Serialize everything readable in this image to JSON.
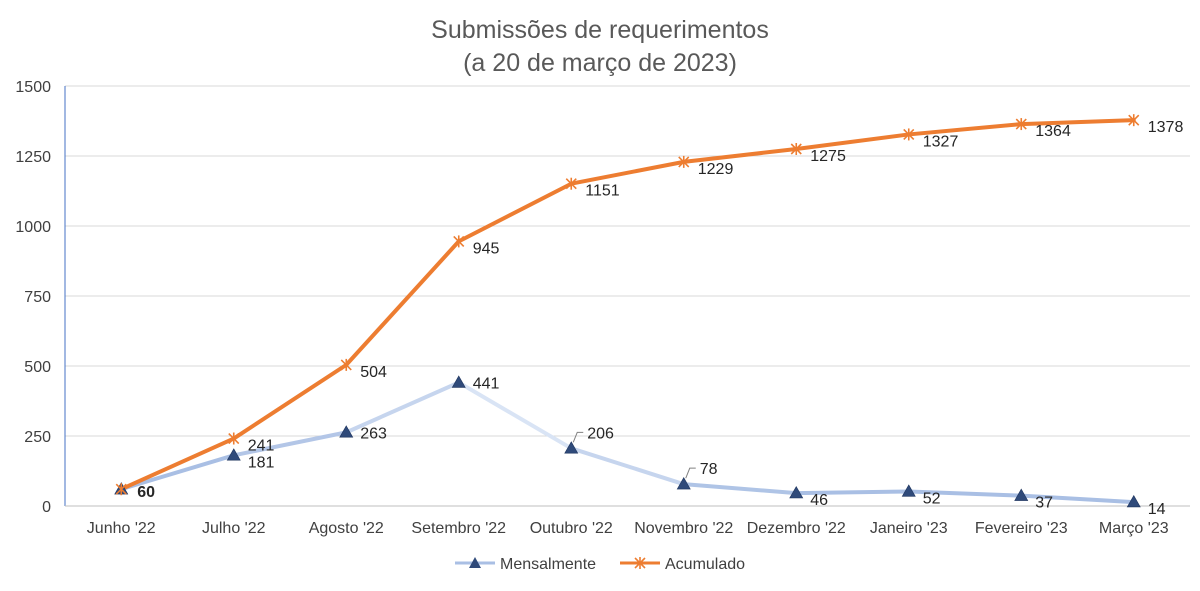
{
  "chart_data": {
    "type": "line",
    "title": "Submissões de requerimentos",
    "subtitle": "(a 20 de março de 2023)",
    "categories": [
      "Junho '22",
      "Julho '22",
      "Agosto '22",
      "Setembro '22",
      "Outubro '22",
      "Novembro '22",
      "Dezembro '22",
      "Janeiro '23",
      "Fevereiro '23",
      "Março '23"
    ],
    "ylim": [
      0,
      1500
    ],
    "yticks": [
      0,
      250,
      500,
      750,
      1000,
      1250,
      1500
    ],
    "grid": true,
    "legend_position": "bottom",
    "series": [
      {
        "name": "Mensalmente",
        "values": [
          60,
          181,
          263,
          441,
          206,
          78,
          46,
          52,
          37,
          14
        ],
        "color": "#a9bfe4",
        "marker": "triangle",
        "marker_color": "#2f4a7a"
      },
      {
        "name": "Acumulado",
        "values": [
          60,
          241,
          504,
          945,
          1151,
          1229,
          1275,
          1327,
          1364,
          1378
        ],
        "color": "#ed7d31",
        "marker": "star",
        "marker_color": "#ed7d31"
      }
    ]
  }
}
